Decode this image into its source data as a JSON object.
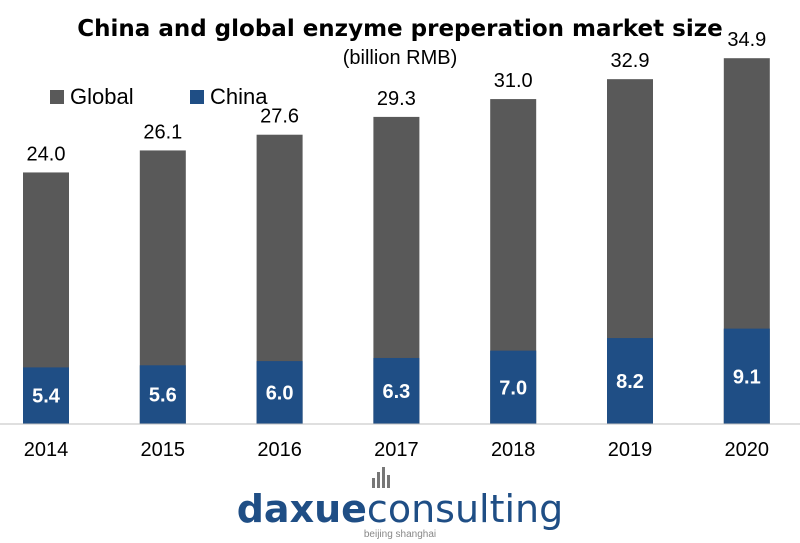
{
  "chart_data": {
    "type": "bar",
    "stacked": false,
    "overlaid": true,
    "title": "China and global enzyme preperation market size",
    "subtitle": "(billion RMB)",
    "categories": [
      "2014",
      "2015",
      "2016",
      "2017",
      "2018",
      "2019",
      "2020"
    ],
    "series": [
      {
        "name": "Global",
        "color": "#595959",
        "values": [
          24.0,
          26.1,
          27.6,
          29.3,
          31.0,
          32.9,
          34.9
        ]
      },
      {
        "name": "China",
        "color": "#1f4e85",
        "values": [
          5.4,
          5.6,
          6.0,
          6.3,
          7.0,
          8.2,
          9.1
        ]
      }
    ],
    "ylim": [
      0,
      36
    ],
    "grid": false,
    "legend_position": "top-left",
    "data_labels": true
  },
  "brand": {
    "logo_text": "daxueconsulting",
    "logo_part_1": "daxue",
    "logo_part_2": "consulting",
    "logo_tagline": "beijing shanghai",
    "logo_color": "#1f4e85",
    "logo_icon": "bar-chart-icon"
  }
}
